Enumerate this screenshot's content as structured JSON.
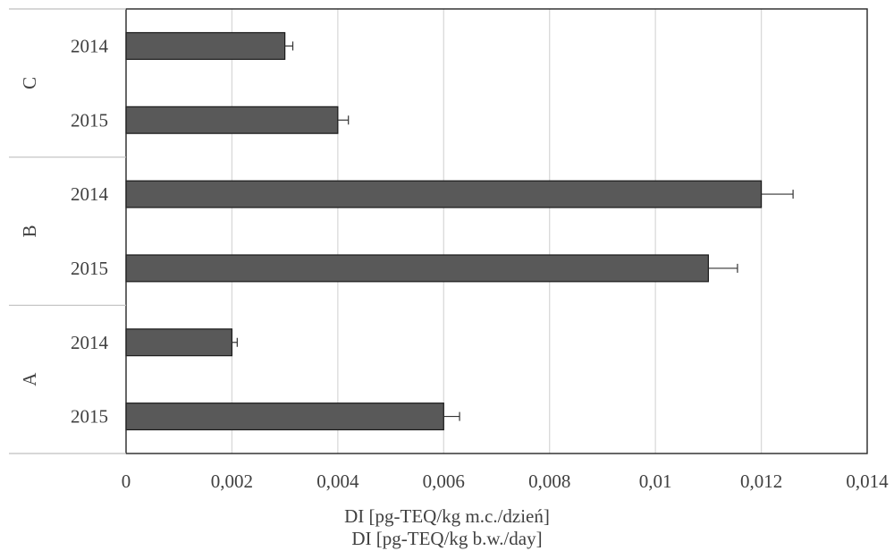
{
  "chart_data": {
    "type": "bar",
    "orientation": "horizontal",
    "groups": [
      {
        "name": "C",
        "categories": [
          "2014",
          "2015"
        ],
        "values": [
          0.003,
          0.004
        ],
        "errors": [
          0.00015,
          0.0002
        ]
      },
      {
        "name": "B",
        "categories": [
          "2014",
          "2015"
        ],
        "values": [
          0.012,
          0.011
        ],
        "errors": [
          0.0006,
          0.00055
        ]
      },
      {
        "name": "A",
        "categories": [
          "2014",
          "2015"
        ],
        "values": [
          0.002,
          0.006
        ],
        "errors": [
          0.0001,
          0.0003
        ]
      }
    ],
    "xticks": [
      "0",
      "0,002",
      "0,004",
      "0,006",
      "0,008",
      "0,01",
      "0,012",
      "0,014"
    ],
    "xlim": [
      0,
      0.014
    ],
    "xlabel": "DI [pg-TEQ/kg m.c./dzień]",
    "xlabel2": "DI [pg-TEQ/kg b.w./day]",
    "grid": true,
    "colors": {
      "bar": "#595959",
      "bar_stroke": "#1a1a1a",
      "grid": "#d9d9d9",
      "text": "#404040"
    }
  }
}
